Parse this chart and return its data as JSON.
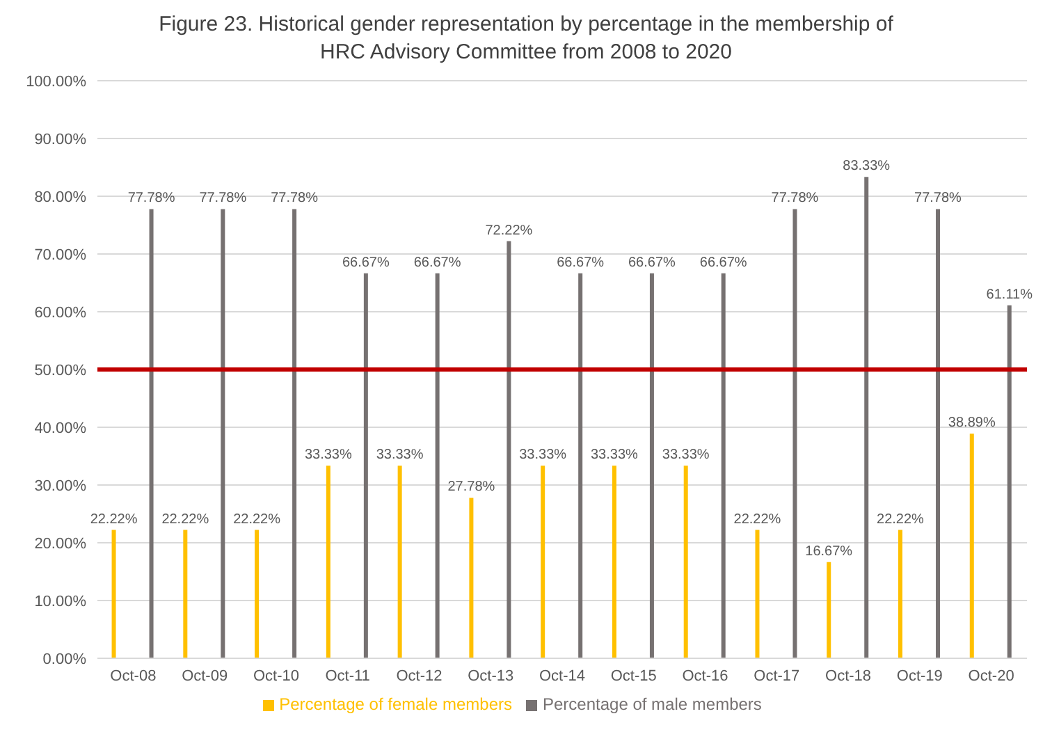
{
  "chart_data": {
    "type": "bar",
    "title": "Figure 23. Historical gender representation by percentage in the membership of HRC Advisory Committee from 2008 to 2020",
    "categories": [
      "Oct-08",
      "Oct-09",
      "Oct-10",
      "Oct-11",
      "Oct-12",
      "Oct-13",
      "Oct-14",
      "Oct-15",
      "Oct-16",
      "Oct-17",
      "Oct-18",
      "Oct-19",
      "Oct-20"
    ],
    "series": [
      {
        "name": "Percentage of female members",
        "color": "#ffc000",
        "values": [
          22.22,
          22.22,
          22.22,
          33.33,
          33.33,
          27.78,
          33.33,
          33.33,
          33.33,
          22.22,
          16.67,
          22.22,
          38.89
        ],
        "value_labels": [
          "22.22%",
          "22.22%",
          "22.22%",
          "33.33%",
          "33.33%",
          "27.78%",
          "33.33%",
          "33.33%",
          "33.33%",
          "22.22%",
          "16.67%",
          "22.22%",
          "38.89%"
        ]
      },
      {
        "name": "Percentage of male members",
        "color": "#767171",
        "values": [
          77.78,
          77.78,
          77.78,
          66.67,
          66.67,
          72.22,
          66.67,
          66.67,
          66.67,
          77.78,
          83.33,
          77.78,
          61.11
        ],
        "value_labels": [
          "77.78%",
          "77.78%",
          "77.78%",
          "66.67%",
          "66.67%",
          "72.22%",
          "66.67%",
          "66.67%",
          "66.67%",
          "77.78%",
          "83.33%",
          "77.78%",
          "61.11%"
        ]
      }
    ],
    "ylim": [
      0,
      100
    ],
    "yticks": [
      {
        "value": 0,
        "label": "0.00%"
      },
      {
        "value": 10,
        "label": "10.00%"
      },
      {
        "value": 20,
        "label": "20.00%"
      },
      {
        "value": 30,
        "label": "30.00%"
      },
      {
        "value": 40,
        "label": "40.00%"
      },
      {
        "value": 50,
        "label": "50.00%"
      },
      {
        "value": 60,
        "label": "60.00%"
      },
      {
        "value": 70,
        "label": "70.00%"
      },
      {
        "value": 80,
        "label": "80.00%"
      },
      {
        "value": 90,
        "label": "90.00%"
      },
      {
        "value": 100,
        "label": "100.00%"
      }
    ],
    "ref_lines": [
      {
        "axis": "y",
        "value": 50,
        "color": "#c00000"
      }
    ],
    "grid": "y",
    "legend": "bottom"
  }
}
